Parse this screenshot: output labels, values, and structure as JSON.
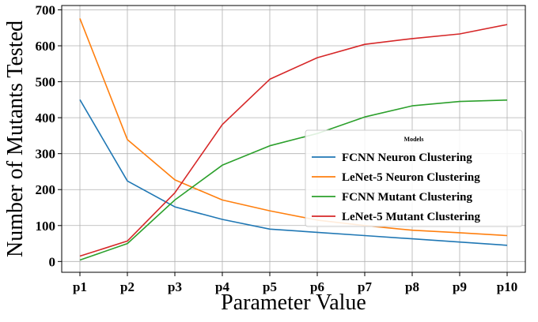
{
  "chart_data": {
    "type": "line",
    "title": "",
    "xlabel": "Parameter Value",
    "ylabel": "Number of Mutants Tested",
    "categories": [
      "p1",
      "p2",
      "p3",
      "p4",
      "p5",
      "p6",
      "p7",
      "p8",
      "p9",
      "p10"
    ],
    "yticks": [
      "0",
      "100",
      "200",
      "300",
      "400",
      "500",
      "600",
      "700"
    ],
    "ylim": [
      -30,
      712
    ],
    "grid": true,
    "legend": {
      "title": "Models",
      "placement": "center-right"
    },
    "series": [
      {
        "name": "FCNN Neuron Clustering",
        "color": "#1f77b4",
        "values": [
          450,
          224,
          152,
          117,
          90,
          81,
          72,
          63,
          54,
          45
        ]
      },
      {
        "name": "LeNet-5 Neuron Clustering",
        "color": "#ff7f0e",
        "values": [
          676,
          339,
          227,
          171,
          141,
          115,
          100,
          87,
          80,
          72
        ]
      },
      {
        "name": "FCNN Mutant Clustering",
        "color": "#2ca02c",
        "values": [
          4,
          50,
          171,
          268,
          322,
          356,
          402,
          433,
          445,
          449
        ]
      },
      {
        "name": "LeNet-5 Mutant Clustering",
        "color": "#d62728",
        "values": [
          15,
          57,
          191,
          381,
          507,
          567,
          604,
          620,
          633,
          659
        ]
      }
    ]
  }
}
